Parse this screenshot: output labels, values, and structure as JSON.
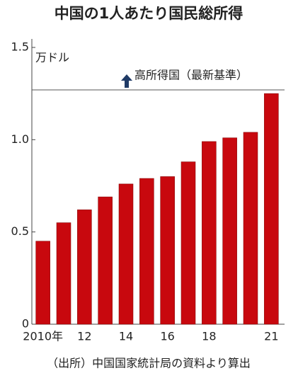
{
  "chart_data": {
    "type": "bar",
    "title": "中国の1人あたり国民総所得",
    "y_label": "万ドル",
    "source": "（出所）中国国家統計局の資料より算出",
    "categories": [
      "2010年",
      null,
      "12",
      null,
      "14",
      null,
      "16",
      null,
      "18",
      null,
      null,
      "21"
    ],
    "values": [
      0.45,
      0.55,
      0.62,
      0.69,
      0.76,
      0.79,
      0.8,
      0.88,
      0.99,
      1.01,
      1.04,
      1.25
    ],
    "color": "#c8080e",
    "ylim": [
      0,
      1.5
    ],
    "yticks": [
      0,
      0.5,
      {
        "value": 1,
        "label": "1.0"
      },
      1.5
    ],
    "reference_line": {
      "value": 1.27,
      "label": "高所得国（最新基準）"
    }
  }
}
